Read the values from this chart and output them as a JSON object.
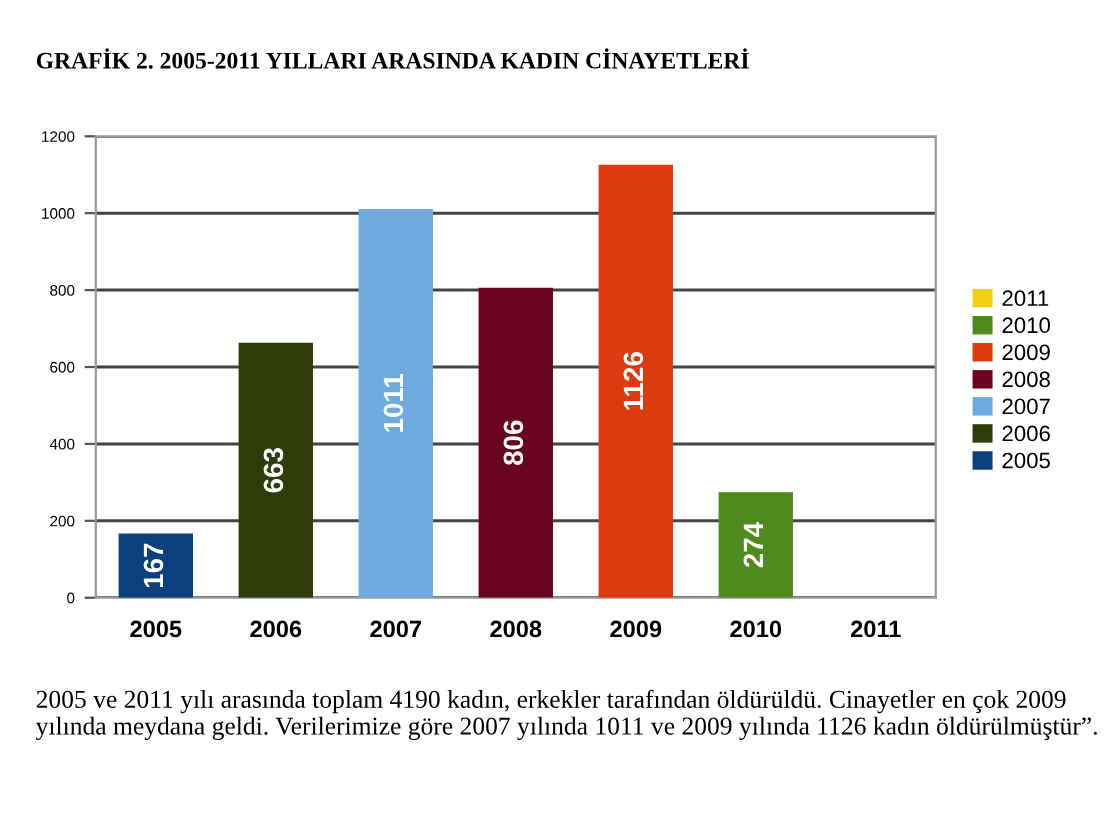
{
  "chart_data": {
    "type": "bar",
    "title": "GRAFİK 2. 2005-2011 YILLARI ARASINDA KADIN CİNAYETLERİ",
    "categories": [
      "2005",
      "2006",
      "2007",
      "2008",
      "2009",
      "2010",
      "2011"
    ],
    "stacked": true,
    "series": [
      {
        "name": "2005",
        "color": "#0b3f7e",
        "values": [
          167,
          null,
          null,
          null,
          null,
          null,
          null
        ]
      },
      {
        "name": "2006",
        "color": "#2f3b08",
        "values": [
          null,
          663,
          null,
          null,
          null,
          null,
          null
        ]
      },
      {
        "name": "2007",
        "color": "#6eaade",
        "values": [
          null,
          null,
          1011,
          null,
          null,
          null,
          null
        ]
      },
      {
        "name": "2008",
        "color": "#6b0420",
        "values": [
          null,
          null,
          null,
          806,
          null,
          null,
          null
        ]
      },
      {
        "name": "2009",
        "color": "#dc3b10",
        "values": [
          null,
          null,
          null,
          null,
          1126,
          null,
          null
        ]
      },
      {
        "name": "2010",
        "color": "#4f8a1f",
        "values": [
          null,
          null,
          null,
          null,
          null,
          274,
          null
        ]
      },
      {
        "name": "2011",
        "color": "#f2cf10",
        "values": [
          null,
          null,
          null,
          null,
          null,
          null,
          null
        ]
      }
    ],
    "ylim": [
      0,
      1200
    ],
    "yticks": [
      0,
      200,
      400,
      600,
      800,
      1000,
      1200
    ],
    "grid": "y",
    "legend": "right",
    "data_labels": true,
    "annotations": [
      "2005 ve 2011 yılı arasında toplam 4190 kadın, erkekler tarafından öldürüldü. Cinayetler en çok 2009 yılında meydana geldi. Verilerimize göre 2007 yılında 1011 ve 2009 yılında 1126 kadın öldürülmüştür”."
    ]
  }
}
